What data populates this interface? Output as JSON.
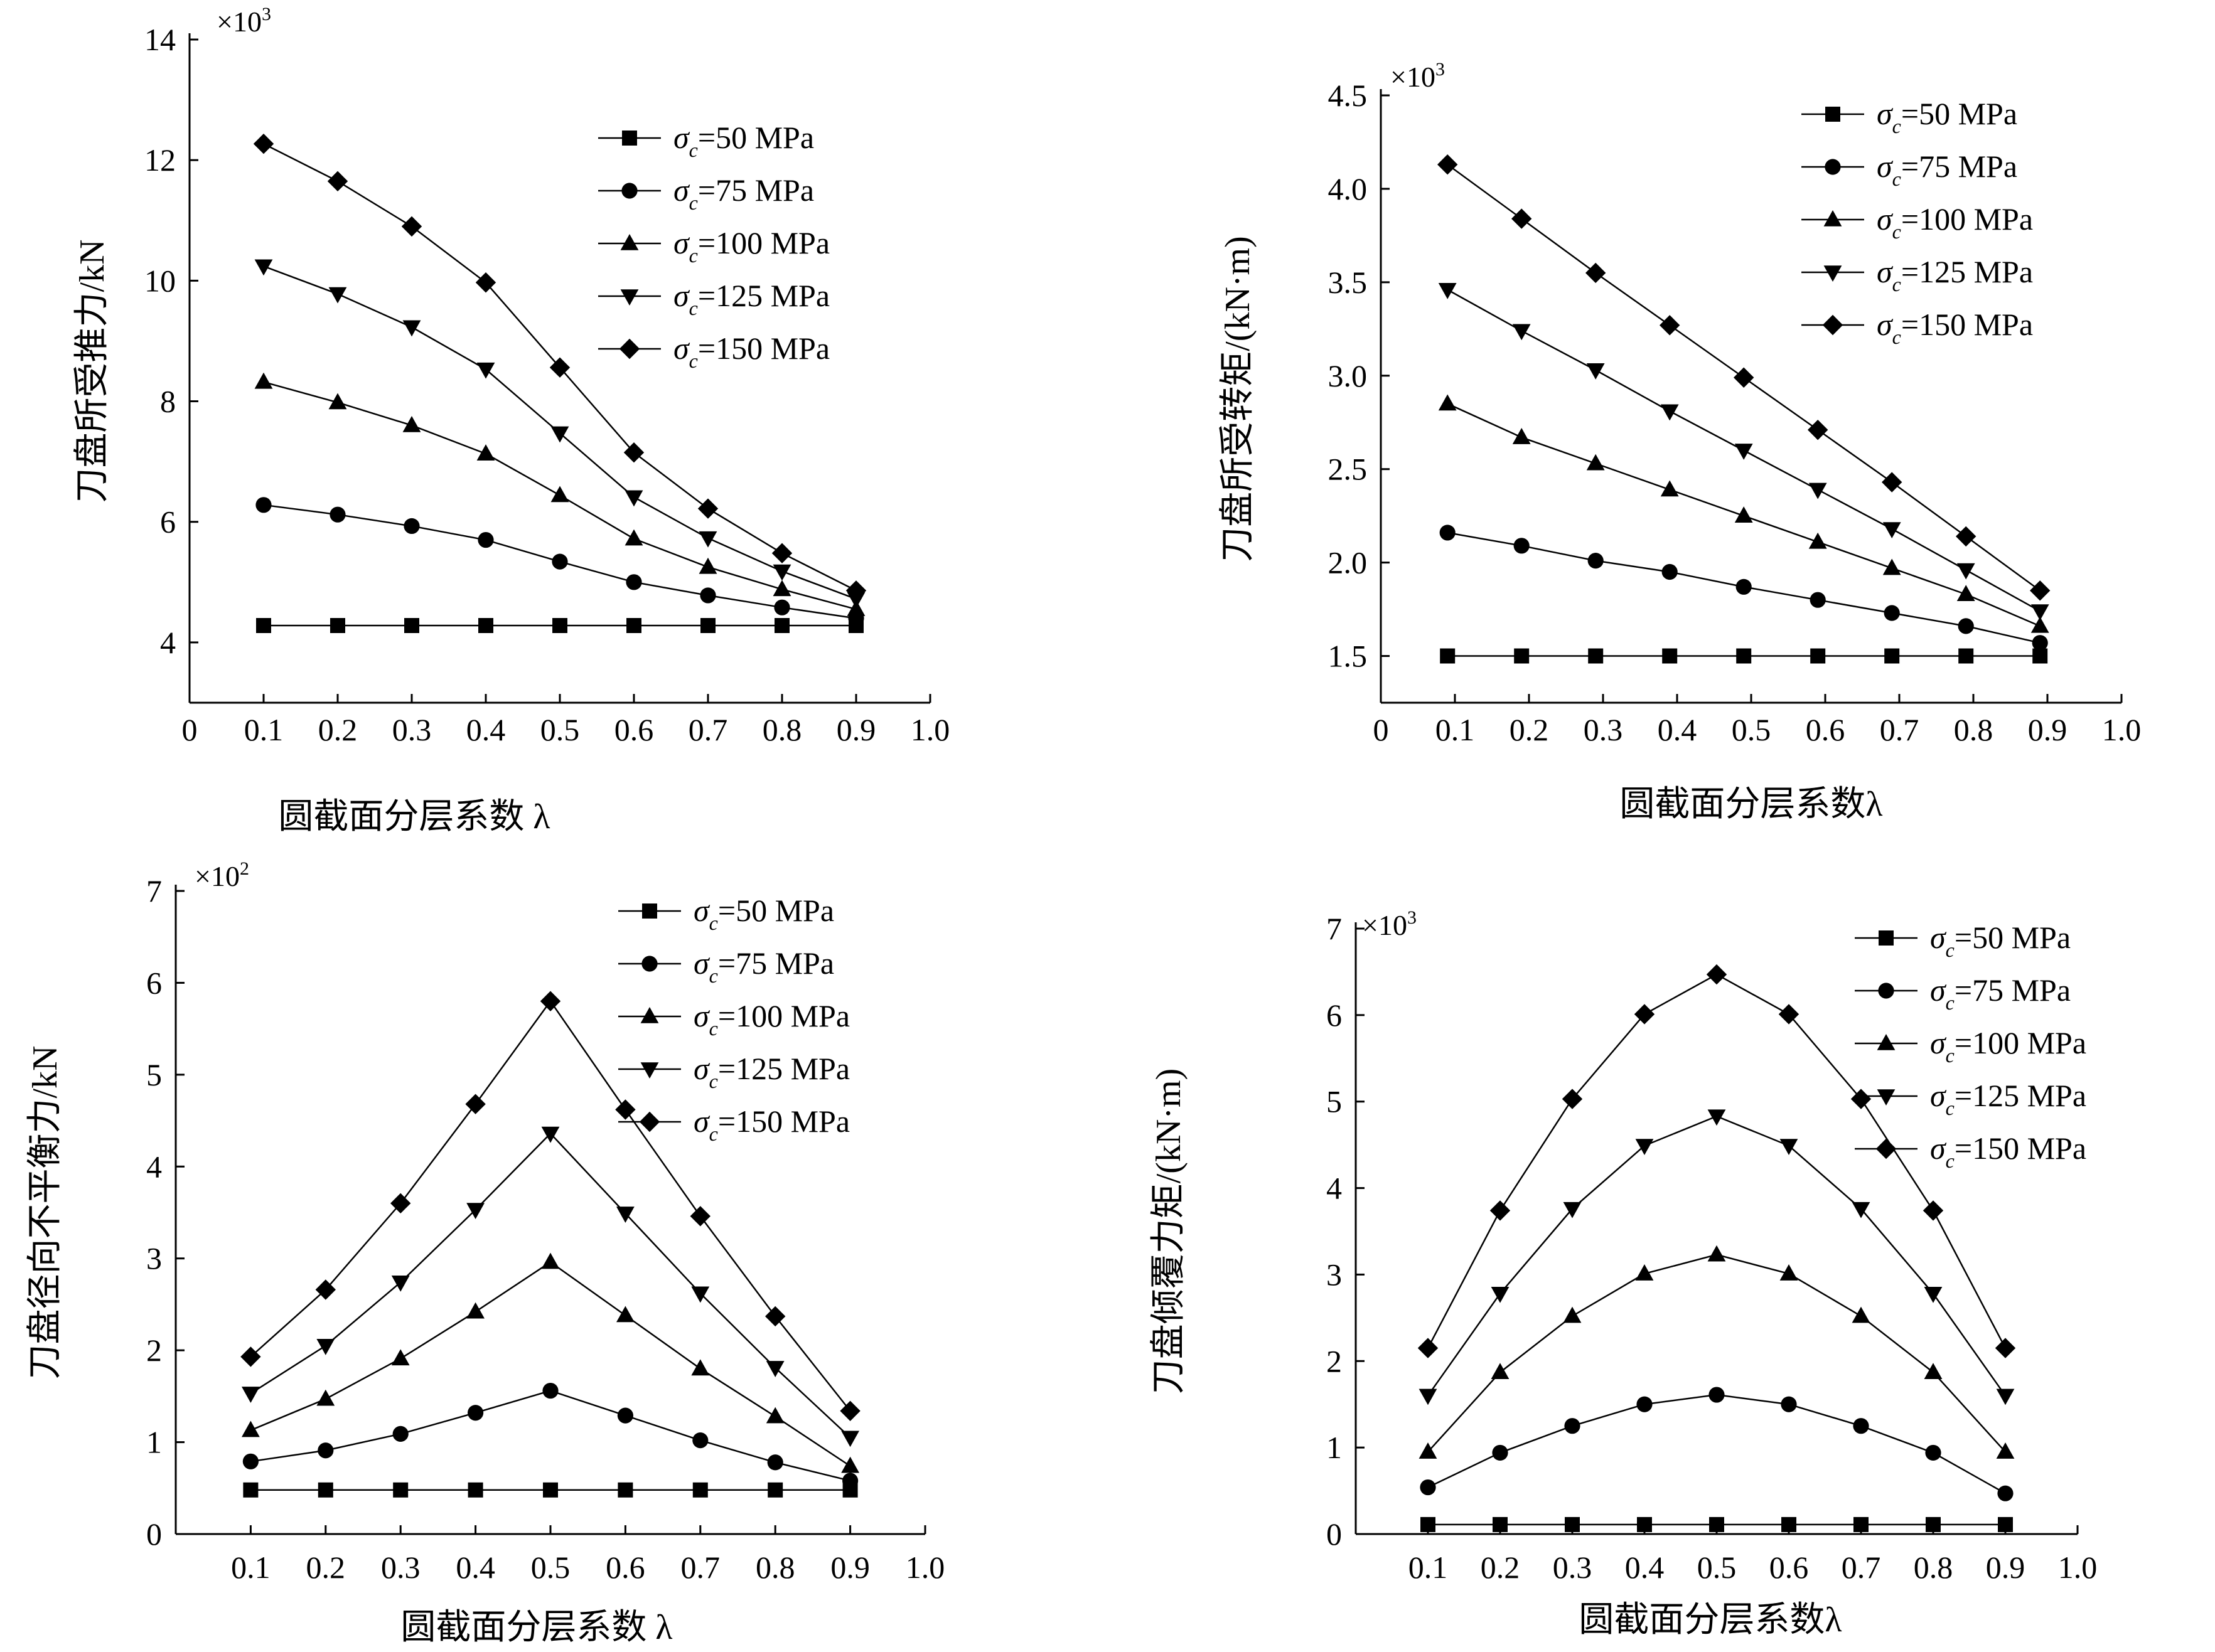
{
  "chart_data": [
    {
      "type": "line",
      "ylabel": "刀盘所受推力/kN",
      "xlabel": "圆截面分层系数 λ",
      "multiplier": "×10",
      "multiplier_exp": "3",
      "xlim": [
        0,
        1.0
      ],
      "ylim": [
        3,
        14
      ],
      "x_ticks": [
        0,
        0.1,
        0.2,
        0.3,
        0.4,
        0.5,
        0.6,
        0.7,
        0.8,
        0.9,
        1.0
      ],
      "x_tick_labels": [
        "0",
        "0.1",
        "0.2",
        "0.3",
        "0.4",
        "0.5",
        "0.6",
        "0.7",
        "0.8",
        "0.9",
        "1.0"
      ],
      "y_ticks": [
        4,
        6,
        8,
        10,
        12,
        14
      ],
      "y_tick_labels": [
        "4",
        "6",
        "8",
        "10",
        "12",
        "14"
      ],
      "x": [
        0.1,
        0.2,
        0.3,
        0.4,
        0.5,
        0.6,
        0.7,
        0.8,
        0.9
      ],
      "legend_position": "top-right",
      "series": [
        {
          "sigma": "σ",
          "sub": "c",
          "rest": "=50 MPa",
          "marker": "square",
          "values": [
            4.28,
            4.28,
            4.28,
            4.28,
            4.28,
            4.28,
            4.28,
            4.28,
            4.28
          ]
        },
        {
          "sigma": "σ",
          "sub": "c",
          "rest": "=75 MPa",
          "marker": "circle",
          "values": [
            6.28,
            6.12,
            5.93,
            5.7,
            5.34,
            5.0,
            4.78,
            4.58,
            4.4
          ]
        },
        {
          "sigma": "σ",
          "sub": "c",
          "rest": "=100 MPa",
          "marker": "triangle-up",
          "values": [
            8.32,
            7.98,
            7.6,
            7.13,
            6.44,
            5.72,
            5.25,
            4.88,
            4.55
          ]
        },
        {
          "sigma": "σ",
          "sub": "c",
          "rest": "=125 MPa",
          "marker": "triangle-down",
          "values": [
            10.24,
            9.78,
            9.23,
            8.53,
            7.47,
            6.41,
            5.73,
            5.18,
            4.72
          ]
        },
        {
          "sigma": "σ",
          "sub": "c",
          "rest": "=150 MPa",
          "marker": "diamond",
          "values": [
            12.27,
            11.65,
            10.9,
            9.97,
            8.56,
            7.15,
            6.22,
            5.48,
            4.86
          ]
        }
      ]
    },
    {
      "type": "line",
      "ylabel": "刀盘所受转矩/(kN·m)",
      "xlabel": "圆截面分层系数λ",
      "multiplier": "×10",
      "multiplier_exp": "3",
      "xlim": [
        0,
        1.0
      ],
      "ylim": [
        1.25,
        4.5
      ],
      "x_ticks": [
        0,
        0.1,
        0.2,
        0.3,
        0.4,
        0.5,
        0.6,
        0.7,
        0.8,
        0.9,
        1.0
      ],
      "x_tick_labels": [
        "0",
        "0.1",
        "0.2",
        "0.3",
        "0.4",
        "0.5",
        "0.6",
        "0.7",
        "0.8",
        "0.9",
        "1.0"
      ],
      "y_ticks": [
        1.5,
        2.0,
        2.5,
        3.0,
        3.5,
        4.0,
        4.5
      ],
      "y_tick_labels": [
        "1.5",
        "2.0",
        "2.5",
        "3.0",
        "3.5",
        "4.0",
        "4.5"
      ],
      "x": [
        0.09,
        0.19,
        0.29,
        0.39,
        0.49,
        0.59,
        0.69,
        0.79,
        0.89
      ],
      "legend_position": "top-right",
      "series": [
        {
          "sigma": "σ",
          "sub": "c",
          "rest": "=50 MPa",
          "marker": "square",
          "values": [
            1.5,
            1.5,
            1.5,
            1.5,
            1.5,
            1.5,
            1.5,
            1.5,
            1.5
          ]
        },
        {
          "sigma": "σ",
          "sub": "c",
          "rest": "=75 MPa",
          "marker": "circle",
          "values": [
            2.16,
            2.09,
            2.01,
            1.95,
            1.87,
            1.8,
            1.73,
            1.66,
            1.57
          ]
        },
        {
          "sigma": "σ",
          "sub": "c",
          "rest": "=100 MPa",
          "marker": "triangle-up",
          "values": [
            2.85,
            2.67,
            2.53,
            2.39,
            2.25,
            2.11,
            1.97,
            1.83,
            1.66
          ]
        },
        {
          "sigma": "σ",
          "sub": "c",
          "rest": "=125 MPa",
          "marker": "triangle-down",
          "values": [
            3.46,
            3.24,
            3.03,
            2.81,
            2.6,
            2.39,
            2.18,
            1.96,
            1.74
          ]
        },
        {
          "sigma": "σ",
          "sub": "c",
          "rest": "=150 MPa",
          "marker": "diamond",
          "values": [
            4.13,
            3.84,
            3.55,
            3.27,
            2.99,
            2.71,
            2.43,
            2.14,
            1.85
          ]
        }
      ]
    },
    {
      "type": "line",
      "ylabel": "刀盘径向不平衡力/kN",
      "xlabel": "圆截面分层系数 λ",
      "multiplier": "×10",
      "multiplier_exp": "2",
      "xlim": [
        0,
        1.0
      ],
      "ylim": [
        0,
        7
      ],
      "x_ticks": [
        0.1,
        0.2,
        0.3,
        0.4,
        0.5,
        0.6,
        0.7,
        0.8,
        0.9,
        1.0
      ],
      "x_tick_labels": [
        "0.1",
        "0.2",
        "0.3",
        "0.4",
        "0.5",
        "0.6",
        "0.7",
        "0.8",
        "0.9",
        "1.0"
      ],
      "y_ticks": [
        0,
        1,
        2,
        3,
        4,
        5,
        6,
        7
      ],
      "y_tick_labels": [
        "0",
        "1",
        "2",
        "3",
        "4",
        "5",
        "6",
        "7"
      ],
      "x": [
        0.1,
        0.2,
        0.3,
        0.4,
        0.5,
        0.6,
        0.7,
        0.8,
        0.9
      ],
      "legend_position": "top-right",
      "series": [
        {
          "sigma": "σ",
          "sub": "c",
          "rest": "=50 MPa",
          "marker": "square",
          "values": [
            0.48,
            0.48,
            0.48,
            0.48,
            0.48,
            0.48,
            0.48,
            0.48,
            0.48
          ]
        },
        {
          "sigma": "σ",
          "sub": "c",
          "rest": "=75 MPa",
          "marker": "circle",
          "values": [
            0.79,
            0.91,
            1.09,
            1.32,
            1.56,
            1.29,
            1.02,
            0.78,
            0.58
          ]
        },
        {
          "sigma": "σ",
          "sub": "c",
          "rest": "=100 MPa",
          "marker": "triangle-up",
          "values": [
            1.13,
            1.47,
            1.91,
            2.42,
            2.96,
            2.38,
            1.8,
            1.28,
            0.74
          ]
        },
        {
          "sigma": "σ",
          "sub": "c",
          "rest": "=125 MPa",
          "marker": "triangle-down",
          "values": [
            1.53,
            2.05,
            2.74,
            3.53,
            4.36,
            3.49,
            2.62,
            1.81,
            1.05
          ]
        },
        {
          "sigma": "σ",
          "sub": "c",
          "rest": "=150 MPa",
          "marker": "diamond",
          "values": [
            1.93,
            2.66,
            3.6,
            4.68,
            5.8,
            4.62,
            3.46,
            2.37,
            1.34
          ]
        }
      ]
    },
    {
      "type": "line",
      "ylabel": "刀盘倾覆力矩/(kN·m)",
      "xlabel": "圆截面分层系数λ",
      "multiplier": "×10",
      "multiplier_exp": "3",
      "xlim": [
        0,
        1.0
      ],
      "ylim": [
        0,
        7
      ],
      "x_ticks": [
        0.1,
        0.2,
        0.3,
        0.4,
        0.5,
        0.6,
        0.7,
        0.8,
        0.9,
        1.0
      ],
      "x_tick_labels": [
        "0.1",
        "0.2",
        "0.3",
        "0.4",
        "0.5",
        "0.6",
        "0.7",
        "0.8",
        "0.9",
        "1.0"
      ],
      "y_ticks": [
        0,
        1,
        2,
        3,
        4,
        5,
        6,
        7
      ],
      "y_tick_labels": [
        "0",
        "1",
        "2",
        "3",
        "4",
        "5",
        "6",
        "7"
      ],
      "x": [
        0.1,
        0.2,
        0.3,
        0.4,
        0.5,
        0.6,
        0.7,
        0.8,
        0.9
      ],
      "legend_position": "top-right",
      "series": [
        {
          "sigma": "σ",
          "sub": "c",
          "rest": "=50 MPa",
          "marker": "square",
          "values": [
            0.11,
            0.11,
            0.11,
            0.11,
            0.11,
            0.11,
            0.11,
            0.11,
            0.11
          ]
        },
        {
          "sigma": "σ",
          "sub": "c",
          "rest": "=75 MPa",
          "marker": "circle",
          "values": [
            0.54,
            0.94,
            1.25,
            1.5,
            1.61,
            1.5,
            1.25,
            0.94,
            0.47
          ]
        },
        {
          "sigma": "σ",
          "sub": "c",
          "rest": "=100 MPa",
          "marker": "triangle-up",
          "values": [
            0.95,
            1.87,
            2.52,
            3.01,
            3.23,
            3.01,
            2.52,
            1.87,
            0.95
          ]
        },
        {
          "sigma": "σ",
          "sub": "c",
          "rest": "=125 MPa",
          "marker": "triangle-down",
          "values": [
            1.6,
            2.78,
            3.76,
            4.49,
            4.83,
            4.49,
            3.76,
            2.78,
            1.6
          ]
        },
        {
          "sigma": "σ",
          "sub": "c",
          "rest": "=150 MPa",
          "marker": "diamond",
          "values": [
            2.15,
            3.74,
            5.03,
            6.01,
            6.47,
            6.01,
            5.03,
            3.74,
            2.15
          ]
        }
      ]
    }
  ]
}
